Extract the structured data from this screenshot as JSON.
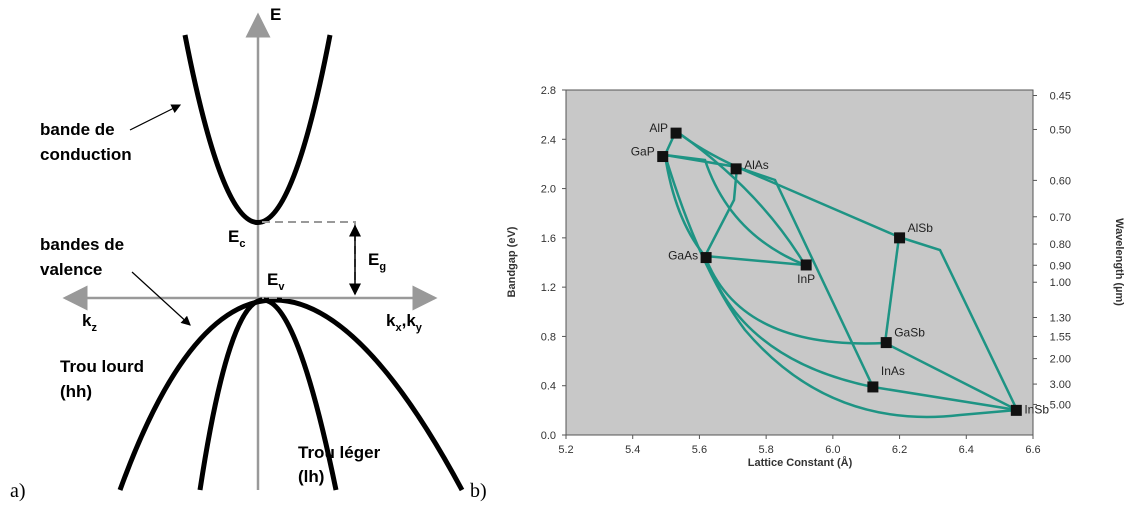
{
  "diagram": {
    "energy_axis": "E",
    "conduction": [
      "bande de",
      "conduction"
    ],
    "valence": [
      "bandes de",
      "valence"
    ],
    "Ec": [
      "E",
      "c"
    ],
    "Ev": [
      "E",
      "v"
    ],
    "Eg": [
      "E",
      "g"
    ],
    "k_left": [
      "k",
      "z"
    ],
    "k_right": [
      "k",
      "x",
      ",k",
      "y"
    ],
    "heavy_hole": [
      "Trou lourd",
      "(hh)"
    ],
    "light_hole": [
      "Trou léger",
      "(lh)"
    ],
    "panel_a": "a)",
    "panel_b": "b)"
  },
  "chart_data": {
    "type": "scatter",
    "xlabel": "Lattice Constant (Å)",
    "ylabel": "Bandgap (eV)",
    "y2label": "Wavelength (µm)",
    "xlim": [
      5.2,
      6.6
    ],
    "xticks": [
      5.2,
      5.4,
      5.6,
      5.8,
      {
        "value": 6,
        "label": "6.0"
      },
      6.2,
      6.4,
      6.6
    ],
    "ylim": [
      0,
      2.8
    ],
    "yticks": [
      {
        "value": 0,
        "label": "0.0"
      },
      0.4,
      0.8,
      1.2,
      1.6,
      {
        "value": 2,
        "label": "2.0"
      },
      2.4,
      2.8
    ],
    "y2scale": "photon-energy",
    "y2ticks": [
      0.45,
      {
        "value": 0.5,
        "label": "0.50"
      },
      {
        "value": 0.6,
        "label": "0.60"
      },
      {
        "value": 0.7,
        "label": "0.70"
      },
      {
        "value": 0.8,
        "label": "0.80"
      },
      {
        "value": 0.9,
        "label": "0.90"
      },
      {
        "value": 1,
        "label": "1.00"
      },
      {
        "value": 1.3,
        "label": "1.30"
      },
      1.55,
      {
        "value": 2,
        "label": "2.00"
      },
      {
        "value": 3,
        "label": "3.00"
      },
      {
        "value": 5,
        "label": "5.00"
      }
    ],
    "background": "#c8c8c8",
    "marker_color": "#111111",
    "points": [
      "AlP",
      "GaP",
      "AlAs",
      "GaAs",
      "InP",
      "AlSb",
      "GaSb",
      "InAs",
      "InSb"
    ],
    "x": [
      5.53,
      5.49,
      5.71,
      5.62,
      5.92,
      6.2,
      6.16,
      6.12,
      6.55
    ],
    "values": [
      2.45,
      2.26,
      2.16,
      1.44,
      1.38,
      1.6,
      0.75,
      0.39,
      0.2
    ]
  }
}
